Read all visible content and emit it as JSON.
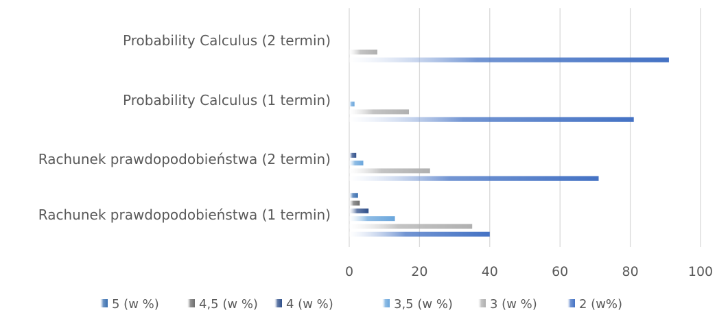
{
  "chart_data": {
    "type": "bar",
    "orientation": "horizontal",
    "categories": [
      "Rachunek prawdopodobieństwa (1 termin)",
      "Rachunek prawdopodobieństwa (2 termin)",
      "Probability Calculus (1 termin)",
      "Probability Calculus (2 termin)"
    ],
    "series": [
      {
        "name": "5 (w %)",
        "values": [
          2.5,
          0,
          0,
          0
        ],
        "color": "#3a6fb0"
      },
      {
        "name": "4,5 (w %)",
        "values": [
          3,
          0,
          0,
          0
        ],
        "color": "#6e6e6e"
      },
      {
        "name": "4 (w %)",
        "values": [
          5.5,
          2,
          0,
          0
        ],
        "color": "#2f4f8a"
      },
      {
        "name": "3,5 (w %)",
        "values": [
          13,
          4,
          1.5,
          0
        ],
        "color": "#6aa6dc"
      },
      {
        "name": "3 (w %)",
        "values": [
          35,
          23,
          17,
          8
        ],
        "color": "#b0b0b0"
      },
      {
        "name": "2 (w%)",
        "values": [
          40,
          71,
          81,
          91
        ],
        "color": "#4472c4"
      }
    ],
    "xlim": [
      0,
      100
    ],
    "xticks": [
      0,
      20,
      40,
      60,
      80,
      100
    ],
    "grid": true,
    "legend_position": "bottom",
    "title": ""
  }
}
